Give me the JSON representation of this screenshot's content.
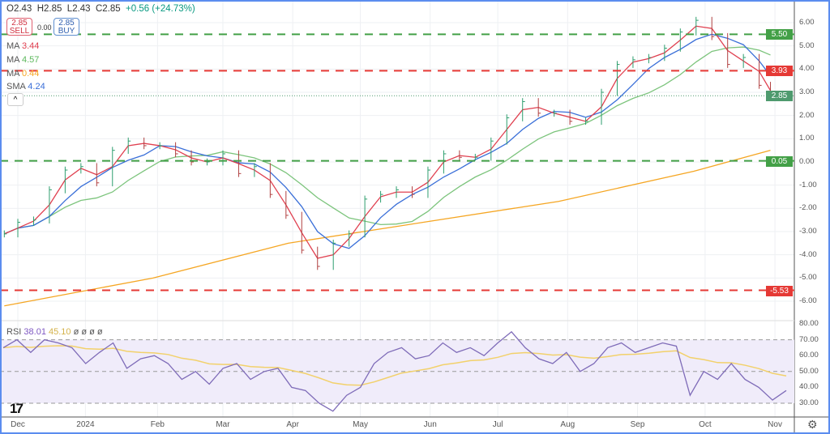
{
  "header": {
    "open": "O2.43",
    "high": "H2.85",
    "low": "L2.43",
    "close": "C2.85",
    "change": "+0.56 (+24.73%)"
  },
  "trade": {
    "sell_price": "2.85",
    "sell_label": "SELL",
    "spread": "0.00",
    "buy_price": "2.85",
    "buy_label": "BUY"
  },
  "indicators": [
    {
      "name": "MA",
      "value": "3.44",
      "color": "#e04050"
    },
    {
      "name": "MA",
      "value": "4.57",
      "color": "#5cb85c"
    },
    {
      "name": "MA",
      "value": "0.44",
      "color": "#f5a623"
    },
    {
      "name": "SMA",
      "value": "4.24",
      "color": "#3a6fd8"
    }
  ],
  "collapse_label": "^",
  "rsi_legend": {
    "name": "RSI",
    "value": "38.01",
    "signal": "45.10",
    "extra": "ø ø ø ø"
  },
  "settings_icon": "gear-icon",
  "chart_data": [
    {
      "type": "line",
      "title": "Price",
      "x_unit": "days since Dec 1 2023",
      "x": [
        -6,
        0,
        7,
        14,
        21,
        28,
        35,
        42,
        49,
        56,
        63,
        70,
        77,
        84,
        91,
        98,
        105,
        112,
        119,
        126,
        133,
        140,
        147,
        154,
        161,
        168,
        175,
        182,
        189,
        196,
        203,
        210,
        217,
        224,
        231,
        238,
        245,
        252,
        259,
        266,
        273,
        280,
        287,
        294,
        301,
        308,
        315,
        322,
        329,
        334
      ],
      "close": [
        -3.1,
        -2.6,
        -2.5,
        -1.2,
        -0.35,
        -0.2,
        -0.9,
        0.5,
        0.9,
        0.7,
        0.7,
        0.35,
        0,
        0,
        0.35,
        -0.5,
        -0.2,
        -1.4,
        -2.3,
        -3.8,
        -4.5,
        -3.5,
        -3.1,
        -1.6,
        -1.4,
        -1.2,
        -1.4,
        -0.35,
        0.35,
        0.2,
        0.2,
        0.9,
        1.9,
        2.6,
        2.1,
        2.1,
        1.75,
        1.75,
        3.0,
        4.2,
        4.4,
        4.5,
        4.9,
        5.6,
        6.1,
        5.4,
        4.2,
        4.5,
        3.3,
        2.85
      ],
      "ma200": {
        "x": [
          -6,
          60,
          120,
          180,
          240,
          300,
          334
        ],
        "y": [
          -6.2,
          -5.0,
          -3.5,
          -2.6,
          -1.7,
          -0.4,
          0.5
        ]
      },
      "ylim": [
        -6.5,
        6.5
      ],
      "yticks": [
        "6.00",
        "5.00",
        "4.00",
        "3.00",
        "2.00",
        "1.00",
        "0.00",
        "-1.00",
        "-2.00",
        "-3.00",
        "-4.00",
        "-5.00",
        "-6.00"
      ],
      "levels": [
        {
          "value": 5.5,
          "label": "5.50",
          "color": "#43a047"
        },
        {
          "value": 3.93,
          "label": "3.93",
          "color": "#e53935"
        },
        {
          "value": 0.05,
          "label": "0.05",
          "color": "#43a047"
        },
        {
          "value": -5.53,
          "label": "-5.53",
          "color": "#e53935"
        }
      ],
      "last_price": {
        "value": 2.85,
        "label": "2.85",
        "color": "#4e9a6e"
      }
    },
    {
      "type": "line",
      "title": "RSI",
      "values": [
        65,
        70,
        62,
        70,
        68,
        65,
        55,
        62,
        68,
        52,
        58,
        60,
        55,
        45,
        50,
        42,
        52,
        55,
        45,
        50,
        52,
        40,
        38,
        30,
        25,
        35,
        40,
        55,
        62,
        65,
        58,
        60,
        68,
        62,
        65,
        60,
        68,
        75,
        65,
        58,
        55,
        62,
        50,
        55,
        65,
        68,
        62,
        65,
        68,
        66,
        35,
        50,
        45,
        55,
        45,
        40,
        32,
        38
      ],
      "ylim": [
        25,
        80
      ],
      "yticks": [
        "80.00",
        "70.00",
        "60.00",
        "50.00",
        "40.00",
        "30.00"
      ],
      "bands": [
        70,
        50,
        30
      ]
    }
  ],
  "xaxis": {
    "labels": [
      "Dec",
      "2024",
      "Feb",
      "Mar",
      "Apr",
      "May",
      "Jun",
      "Jul",
      "Aug",
      "Sep",
      "Oct",
      "Nov"
    ],
    "days": [
      0,
      30,
      62,
      91,
      122,
      152,
      183,
      213,
      244,
      275,
      305,
      336
    ]
  }
}
